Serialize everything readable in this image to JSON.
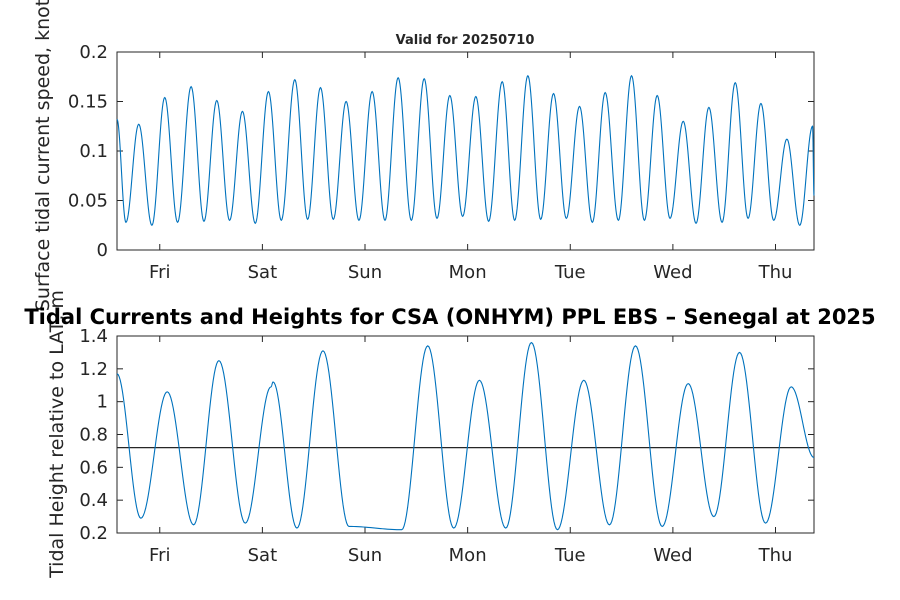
{
  "chart_data": [
    {
      "type": "line",
      "title": "Valid for 20250710",
      "xlabel": "",
      "ylabel": "Surface tidal current speed, knots",
      "xlim": [
        "2025-07-10T14:00",
        "2025-07-17T09:00"
      ],
      "ylim": [
        0,
        0.2
      ],
      "yticks": [
        "0",
        "0.05",
        "0.1",
        "0.15",
        "0.2"
      ],
      "xticks": [
        {
          "t": "2025-07-11T00:00",
          "label": "Fri"
        },
        {
          "t": "2025-07-12T00:00",
          "label": "Sat"
        },
        {
          "t": "2025-07-13T00:00",
          "label": "Sun"
        },
        {
          "t": "2025-07-14T00:00",
          "label": "Mon"
        },
        {
          "t": "2025-07-15T00:00",
          "label": "Tue"
        },
        {
          "t": "2025-07-16T00:00",
          "label": "Wed"
        },
        {
          "t": "2025-07-17T00:00",
          "label": "Thu"
        }
      ],
      "color": "#0072BD",
      "series": [
        {
          "x": [
            "2025-07-10T14:00",
            "2025-07-10T16:05",
            "2025-07-10T19:05",
            "2025-07-10T22:10",
            "2025-07-11T01:10",
            "2025-07-11T04:10",
            "2025-07-11T07:20",
            "2025-07-11T10:20",
            "2025-07-11T13:20",
            "2025-07-11T16:20",
            "2025-07-11T19:20",
            "2025-07-11T22:20",
            "2025-07-12T01:25",
            "2025-07-12T04:25",
            "2025-07-12T07:35",
            "2025-07-12T10:35",
            "2025-07-12T13:35",
            "2025-07-12T16:35",
            "2025-07-12T19:35",
            "2025-07-12T22:35",
            "2025-07-13T01:40",
            "2025-07-13T04:40",
            "2025-07-13T07:45",
            "2025-07-13T10:50",
            "2025-07-13T13:50",
            "2025-07-13T16:50",
            "2025-07-13T19:50",
            "2025-07-13T22:50",
            "2025-07-14T01:55",
            "2025-07-14T04:55",
            "2025-07-14T08:05",
            "2025-07-14T11:00",
            "2025-07-14T14:05",
            "2025-07-14T17:05",
            "2025-07-14T20:05",
            "2025-07-14T23:05",
            "2025-07-15T02:10",
            "2025-07-15T05:10",
            "2025-07-15T08:10",
            "2025-07-15T11:15",
            "2025-07-15T14:20",
            "2025-07-15T17:20",
            "2025-07-15T20:20",
            "2025-07-15T23:20",
            "2025-07-16T02:25",
            "2025-07-16T05:25",
            "2025-07-16T08:25",
            "2025-07-16T11:30",
            "2025-07-16T14:35",
            "2025-07-16T17:35",
            "2025-07-16T20:35",
            "2025-07-16T23:35",
            "2025-07-17T02:40",
            "2025-07-17T05:40",
            "2025-07-17T08:40",
            "2025-07-17T09:00"
          ],
          "y": [
            0.132,
            0.028,
            0.127,
            0.025,
            0.154,
            0.028,
            0.165,
            0.029,
            0.151,
            0.03,
            0.14,
            0.027,
            0.16,
            0.03,
            0.172,
            0.031,
            0.164,
            0.031,
            0.15,
            0.03,
            0.16,
            0.03,
            0.174,
            0.03,
            0.173,
            0.032,
            0.156,
            0.034,
            0.155,
            0.029,
            0.17,
            0.03,
            0.176,
            0.031,
            0.158,
            0.032,
            0.145,
            0.028,
            0.159,
            0.03,
            0.176,
            0.03,
            0.156,
            0.032,
            0.13,
            0.027,
            0.144,
            0.028,
            0.169,
            0.032,
            0.148,
            0.03,
            0.112,
            0.025,
            0.125,
            0.055
          ]
        }
      ]
    },
    {
      "type": "line",
      "title": "",
      "xlabel": "",
      "ylabel": "Tidal Height relative to LAT, m",
      "xlim": [
        "2025-07-10T14:00",
        "2025-07-17T09:00"
      ],
      "ylim": [
        0.2,
        1.4
      ],
      "yticks": [
        "0.2",
        "0.4",
        "0.6",
        "0.8",
        "1",
        "1.2",
        "1.4"
      ],
      "xticks": [
        {
          "t": "2025-07-11T00:00",
          "label": "Fri"
        },
        {
          "t": "2025-07-12T00:00",
          "label": "Sat"
        },
        {
          "t": "2025-07-13T00:00",
          "label": "Sun"
        },
        {
          "t": "2025-07-14T00:00",
          "label": "Mon"
        },
        {
          "t": "2025-07-15T00:00",
          "label": "Tue"
        },
        {
          "t": "2025-07-16T00:00",
          "label": "Wed"
        },
        {
          "t": "2025-07-17T00:00",
          "label": "Thu"
        }
      ],
      "color": "#0072BD",
      "reference_level": 0.72,
      "reference_color": "#262626",
      "series": [
        {
          "x": [
            "2025-07-10T14:00",
            "2025-07-10T19:35",
            "2025-07-11T01:45",
            "2025-07-11T07:55",
            "2025-07-11T13:50",
            "2025-07-11T20:00",
            "2025-07-12T02:00",
            "2025-07-12T08:05",
            "2025-07-12T14:10",
            "2025-07-12T20:15",
            "2025-07-12T02:30",
            "2025-07-13T08:35",
            "2025-07-13T14:40",
            "2025-07-13T20:45",
            "2025-07-14T02:45",
            "2025-07-14T08:55",
            "2025-07-14T14:55",
            "2025-07-14T21:00",
            "2025-07-15T03:10",
            "2025-07-15T09:10",
            "2025-07-15T15:15",
            "2025-07-15T21:30",
            "2025-07-16T03:35",
            "2025-07-16T09:35",
            "2025-07-16T15:35",
            "2025-07-16T21:40",
            "2025-07-17T03:40",
            "2025-07-17T09:00"
          ],
          "y": [
            1.17,
            0.29,
            1.06,
            0.25,
            1.25,
            0.26,
            1.09,
            0.23,
            1.31,
            0.24,
            1.12,
            0.22,
            1.34,
            0.23,
            1.13,
            0.23,
            1.36,
            0.22,
            1.13,
            0.25,
            1.34,
            0.24,
            1.11,
            0.3,
            1.3,
            0.26,
            1.09,
            0.66
          ]
        }
      ]
    }
  ],
  "suptitle": "Tidal Currents and Heights for CSA (ONHYM) PPL EBS  – Senegal at 2025"
}
